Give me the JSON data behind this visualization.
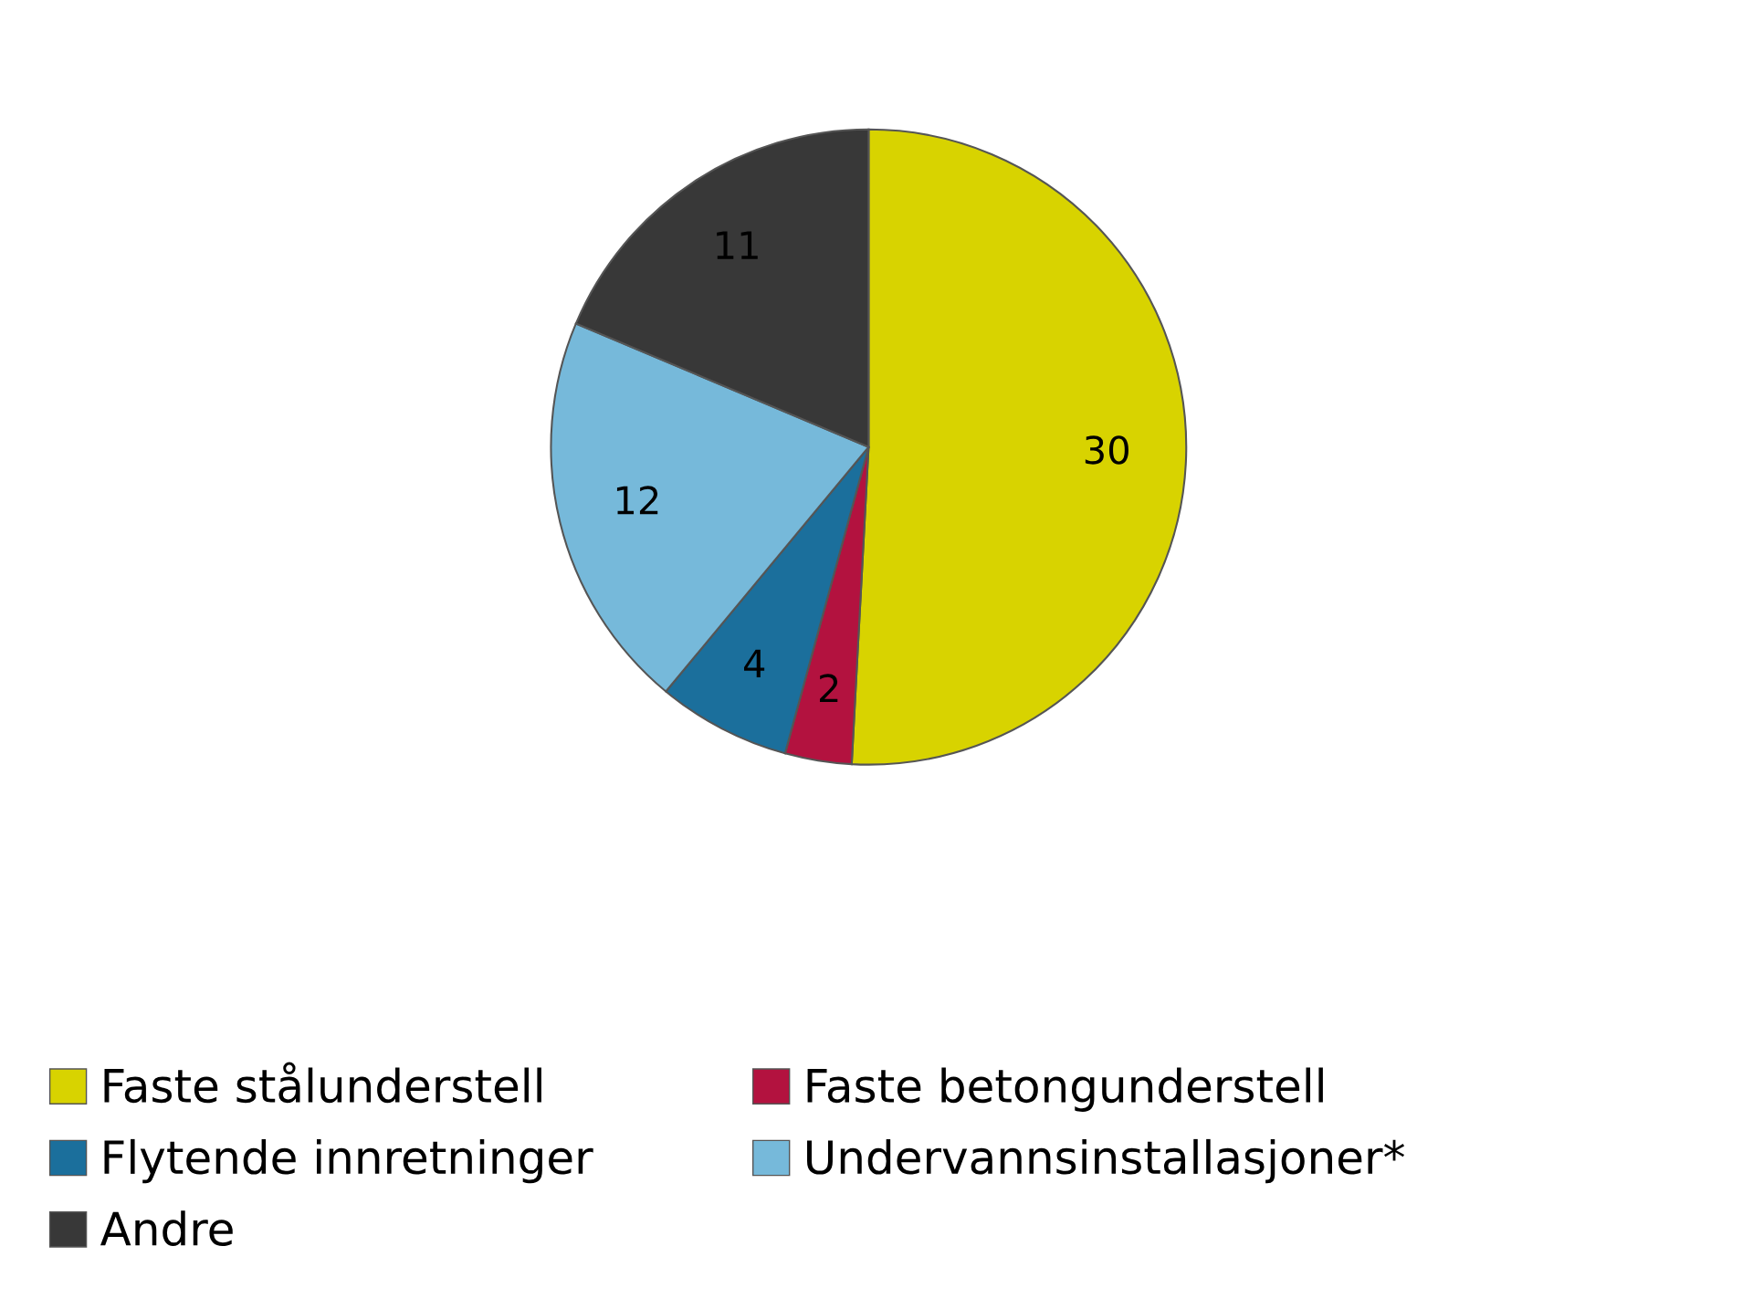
{
  "chart_data": {
    "type": "pie",
    "categories": [
      "Faste stålunderstell",
      "Faste betongunderstell",
      "Flytende innretninger",
      "Undervannsinstallasjoner*",
      "Andre"
    ],
    "values": [
      30,
      2,
      4,
      12,
      11
    ],
    "colors": [
      "#d8d300",
      "#b3123f",
      "#1b6f9c",
      "#76b9da",
      "#383838"
    ],
    "data_labels": true,
    "legend": "bottom"
  }
}
